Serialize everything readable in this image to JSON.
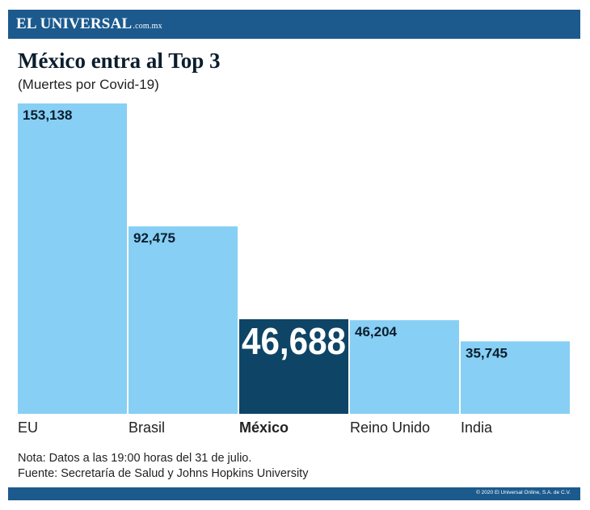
{
  "header": {
    "brand": "EL UNIVERSAL",
    "brand_suffix": ".com.mx"
  },
  "colors": {
    "brand_bar": "#1c5a8e",
    "bar_default": "#87cff4",
    "bar_highlight": "#0e4566"
  },
  "chart_data": {
    "type": "bar",
    "title": "México entra al Top 3",
    "subtitle": "(Muertes por Covid-19)",
    "xlabel": "",
    "ylabel": "",
    "ylim": [
      0,
      153138
    ],
    "grid": false,
    "categories": [
      "EU",
      "Brasil",
      "México",
      "Reino Unido",
      "India"
    ],
    "values": [
      153138,
      92475,
      46688,
      46204,
      35745
    ],
    "value_labels": [
      "153,138",
      "92,475",
      "46,688",
      "46,204",
      "35,745"
    ],
    "highlight": "México"
  },
  "footer": {
    "note": "Nota: Datos a las 19:00 horas del 31 de julio.",
    "source": "Fuente: Secretaría de Salud y Johns Hopkins University",
    "copyright": "© 2020 El Universal Online, S.A. de C.V."
  }
}
